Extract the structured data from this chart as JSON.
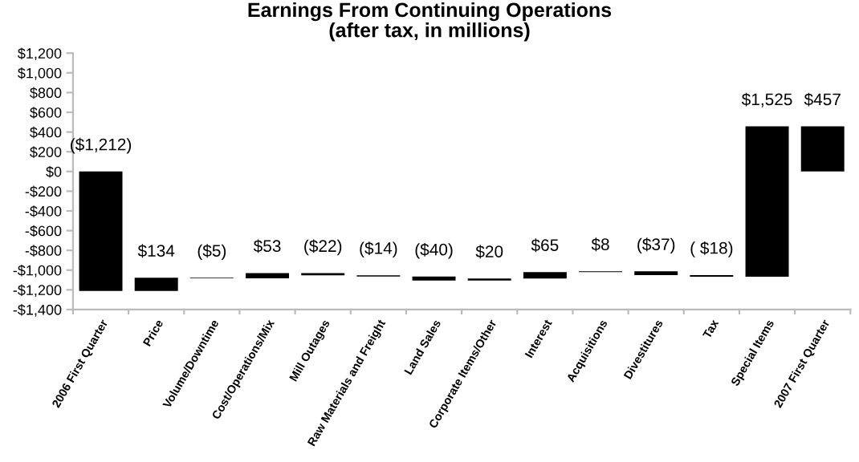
{
  "chart_data": {
    "type": "bar",
    "title": "Earnings From Continuing Operations\n(after tax, in millions)",
    "categories": [
      "2006 First Quarter",
      "Price",
      "Volume/Downtime",
      "Cost/Operations/Mix",
      "Mill Outages",
      "Raw Materials and Freight",
      "Land Sales",
      "Corporate Items/Other",
      "Interest",
      "Acquisitions",
      "Divestitures",
      "Tax",
      "Special Items",
      "2007 First Quarter"
    ],
    "values": [
      -1212,
      134,
      -5,
      53,
      -22,
      -14,
      -40,
      20,
      65,
      8,
      -37,
      -18,
      1525,
      457
    ],
    "base": [
      0,
      -1212,
      -1078,
      -1083,
      -1030,
      -1052,
      -1066,
      -1106,
      -1086,
      -1021,
      -1013,
      -1050,
      -1068,
      0
    ],
    "value_labels": [
      "($1,212)",
      "$134",
      "($5)",
      "$53",
      "($22)",
      "($14)",
      "($40)",
      "$20",
      "$65",
      "$8",
      "($37)",
      "( $18)",
      "$1,525",
      "$457"
    ],
    "color": "#000000",
    "ylim": [
      -1400,
      1200
    ],
    "yticks": [
      {
        "value": -1400,
        "label": "-$1,400"
      },
      {
        "value": -1200,
        "label": "-$1,200"
      },
      {
        "value": -1000,
        "label": "-$1,000"
      },
      {
        "value": -800,
        "label": "-$800"
      },
      {
        "value": -600,
        "label": "-$600"
      },
      {
        "value": -400,
        "label": "-$400"
      },
      {
        "value": -200,
        "label": "-$200"
      },
      {
        "value": 0,
        "label": "$0"
      },
      {
        "value": 200,
        "label": "$200"
      },
      {
        "value": 400,
        "label": "$400"
      },
      {
        "value": 600,
        "label": "$600"
      },
      {
        "value": 800,
        "label": "$800"
      },
      {
        "value": 1000,
        "label": "$1,000"
      },
      {
        "value": 1200,
        "label": "$1,200"
      }
    ],
    "grid": false,
    "legend": false
  }
}
